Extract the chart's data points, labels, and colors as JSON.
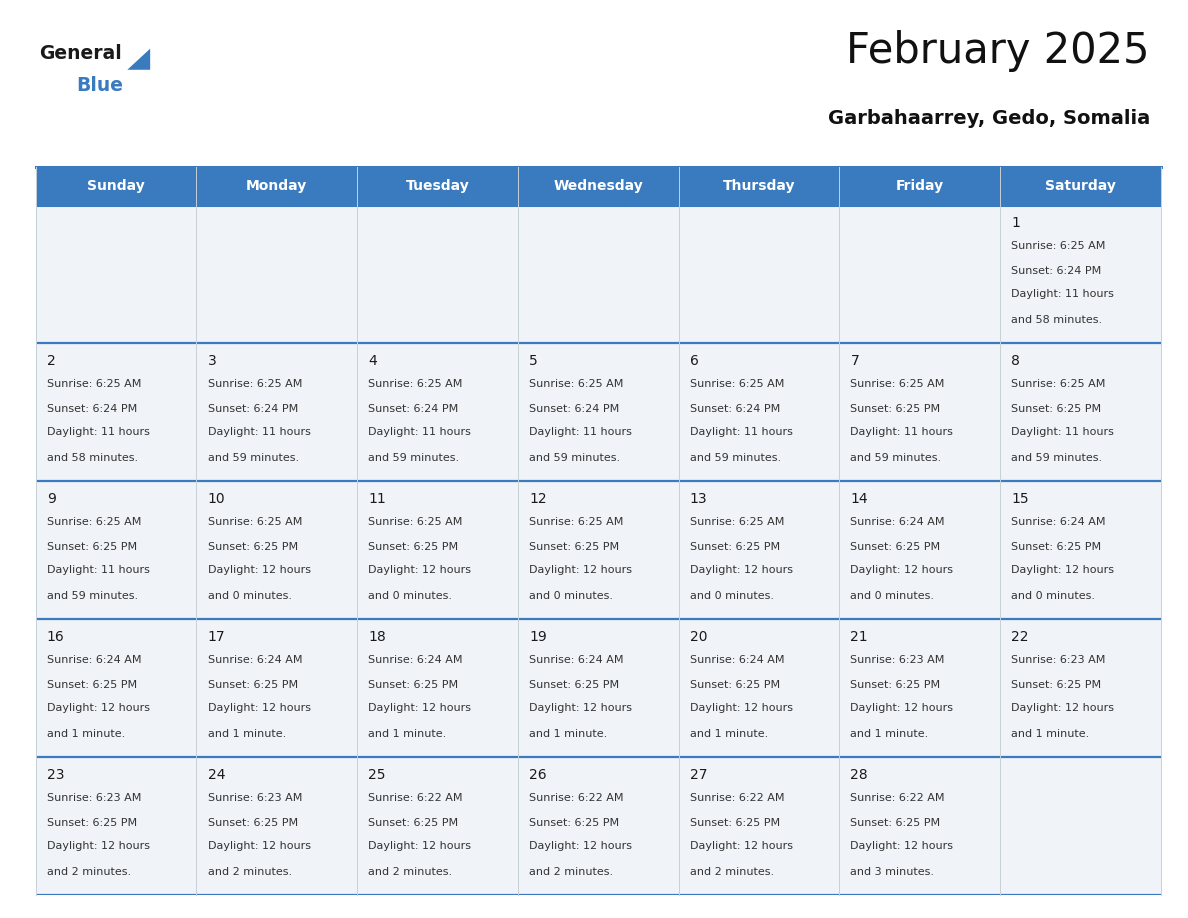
{
  "title": "February 2025",
  "subtitle": "Garbahaarrey, Gedo, Somalia",
  "header_bg": "#3a7abf",
  "header_text": "#ffffff",
  "cell_bg": "#f0f4f8",
  "border_blue": "#3a7abf",
  "border_light": "#c8d0d8",
  "text_color": "#333333",
  "day_num_color": "#1a1a1a",
  "day_headers": [
    "Sunday",
    "Monday",
    "Tuesday",
    "Wednesday",
    "Thursday",
    "Friday",
    "Saturday"
  ],
  "days": [
    {
      "day": 1,
      "col": 6,
      "row": 0,
      "sunrise": "6:25 AM",
      "sunset": "6:24 PM",
      "daylight": "11 hours\nand 58 minutes."
    },
    {
      "day": 2,
      "col": 0,
      "row": 1,
      "sunrise": "6:25 AM",
      "sunset": "6:24 PM",
      "daylight": "11 hours\nand 58 minutes."
    },
    {
      "day": 3,
      "col": 1,
      "row": 1,
      "sunrise": "6:25 AM",
      "sunset": "6:24 PM",
      "daylight": "11 hours\nand 59 minutes."
    },
    {
      "day": 4,
      "col": 2,
      "row": 1,
      "sunrise": "6:25 AM",
      "sunset": "6:24 PM",
      "daylight": "11 hours\nand 59 minutes."
    },
    {
      "day": 5,
      "col": 3,
      "row": 1,
      "sunrise": "6:25 AM",
      "sunset": "6:24 PM",
      "daylight": "11 hours\nand 59 minutes."
    },
    {
      "day": 6,
      "col": 4,
      "row": 1,
      "sunrise": "6:25 AM",
      "sunset": "6:24 PM",
      "daylight": "11 hours\nand 59 minutes."
    },
    {
      "day": 7,
      "col": 5,
      "row": 1,
      "sunrise": "6:25 AM",
      "sunset": "6:25 PM",
      "daylight": "11 hours\nand 59 minutes."
    },
    {
      "day": 8,
      "col": 6,
      "row": 1,
      "sunrise": "6:25 AM",
      "sunset": "6:25 PM",
      "daylight": "11 hours\nand 59 minutes."
    },
    {
      "day": 9,
      "col": 0,
      "row": 2,
      "sunrise": "6:25 AM",
      "sunset": "6:25 PM",
      "daylight": "11 hours\nand 59 minutes."
    },
    {
      "day": 10,
      "col": 1,
      "row": 2,
      "sunrise": "6:25 AM",
      "sunset": "6:25 PM",
      "daylight": "12 hours\nand 0 minutes."
    },
    {
      "day": 11,
      "col": 2,
      "row": 2,
      "sunrise": "6:25 AM",
      "sunset": "6:25 PM",
      "daylight": "12 hours\nand 0 minutes."
    },
    {
      "day": 12,
      "col": 3,
      "row": 2,
      "sunrise": "6:25 AM",
      "sunset": "6:25 PM",
      "daylight": "12 hours\nand 0 minutes."
    },
    {
      "day": 13,
      "col": 4,
      "row": 2,
      "sunrise": "6:25 AM",
      "sunset": "6:25 PM",
      "daylight": "12 hours\nand 0 minutes."
    },
    {
      "day": 14,
      "col": 5,
      "row": 2,
      "sunrise": "6:24 AM",
      "sunset": "6:25 PM",
      "daylight": "12 hours\nand 0 minutes."
    },
    {
      "day": 15,
      "col": 6,
      "row": 2,
      "sunrise": "6:24 AM",
      "sunset": "6:25 PM",
      "daylight": "12 hours\nand 0 minutes."
    },
    {
      "day": 16,
      "col": 0,
      "row": 3,
      "sunrise": "6:24 AM",
      "sunset": "6:25 PM",
      "daylight": "12 hours\nand 1 minute."
    },
    {
      "day": 17,
      "col": 1,
      "row": 3,
      "sunrise": "6:24 AM",
      "sunset": "6:25 PM",
      "daylight": "12 hours\nand 1 minute."
    },
    {
      "day": 18,
      "col": 2,
      "row": 3,
      "sunrise": "6:24 AM",
      "sunset": "6:25 PM",
      "daylight": "12 hours\nand 1 minute."
    },
    {
      "day": 19,
      "col": 3,
      "row": 3,
      "sunrise": "6:24 AM",
      "sunset": "6:25 PM",
      "daylight": "12 hours\nand 1 minute."
    },
    {
      "day": 20,
      "col": 4,
      "row": 3,
      "sunrise": "6:24 AM",
      "sunset": "6:25 PM",
      "daylight": "12 hours\nand 1 minute."
    },
    {
      "day": 21,
      "col": 5,
      "row": 3,
      "sunrise": "6:23 AM",
      "sunset": "6:25 PM",
      "daylight": "12 hours\nand 1 minute."
    },
    {
      "day": 22,
      "col": 6,
      "row": 3,
      "sunrise": "6:23 AM",
      "sunset": "6:25 PM",
      "daylight": "12 hours\nand 1 minute."
    },
    {
      "day": 23,
      "col": 0,
      "row": 4,
      "sunrise": "6:23 AM",
      "sunset": "6:25 PM",
      "daylight": "12 hours\nand 2 minutes."
    },
    {
      "day": 24,
      "col": 1,
      "row": 4,
      "sunrise": "6:23 AM",
      "sunset": "6:25 PM",
      "daylight": "12 hours\nand 2 minutes."
    },
    {
      "day": 25,
      "col": 2,
      "row": 4,
      "sunrise": "6:22 AM",
      "sunset": "6:25 PM",
      "daylight": "12 hours\nand 2 minutes."
    },
    {
      "day": 26,
      "col": 3,
      "row": 4,
      "sunrise": "6:22 AM",
      "sunset": "6:25 PM",
      "daylight": "12 hours\nand 2 minutes."
    },
    {
      "day": 27,
      "col": 4,
      "row": 4,
      "sunrise": "6:22 AM",
      "sunset": "6:25 PM",
      "daylight": "12 hours\nand 2 minutes."
    },
    {
      "day": 28,
      "col": 5,
      "row": 4,
      "sunrise": "6:22 AM",
      "sunset": "6:25 PM",
      "daylight": "12 hours\nand 3 minutes."
    }
  ],
  "num_rows": 5,
  "num_cols": 7,
  "fig_width": 11.88,
  "fig_height": 9.18,
  "logo_general_color": "#1a1a1a",
  "logo_blue_color": "#3a7abf"
}
